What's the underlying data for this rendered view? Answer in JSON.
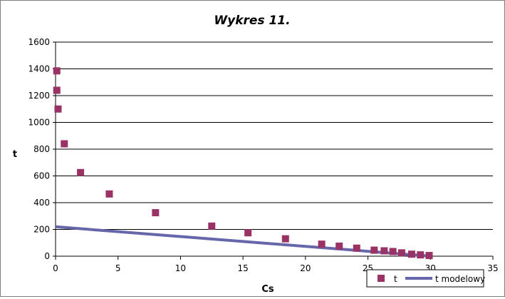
{
  "chart_data": {
    "type": "scatter",
    "title": "Wykres 11.",
    "xlabel": "Cs",
    "ylabel": "t",
    "xlim": [
      0,
      35
    ],
    "ylim": [
      0,
      1600
    ],
    "x_ticks": [
      0,
      5,
      10,
      15,
      20,
      25,
      30,
      35
    ],
    "y_ticks": [
      0,
      200,
      400,
      600,
      800,
      1000,
      1200,
      1400,
      1600
    ],
    "grid": "horizontal",
    "legend_position": "bottom-right",
    "series": [
      {
        "name": "t",
        "kind": "scatter",
        "marker": "square",
        "color": "#993366",
        "x": [
          0.1,
          0.1,
          0.2,
          0.7,
          2.0,
          4.3,
          8.0,
          12.5,
          15.4,
          18.4,
          21.3,
          22.7,
          24.1,
          25.5,
          26.3,
          27.0,
          27.7,
          28.5,
          29.2,
          29.9
        ],
        "y": [
          1385,
          1240,
          1100,
          840,
          625,
          465,
          325,
          225,
          175,
          130,
          90,
          75,
          60,
          45,
          40,
          35,
          25,
          15,
          10,
          5
        ]
      },
      {
        "name": "t modelowy",
        "kind": "line",
        "color": "#6666aa",
        "x": [
          0,
          30
        ],
        "y": [
          220,
          0
        ]
      }
    ]
  }
}
